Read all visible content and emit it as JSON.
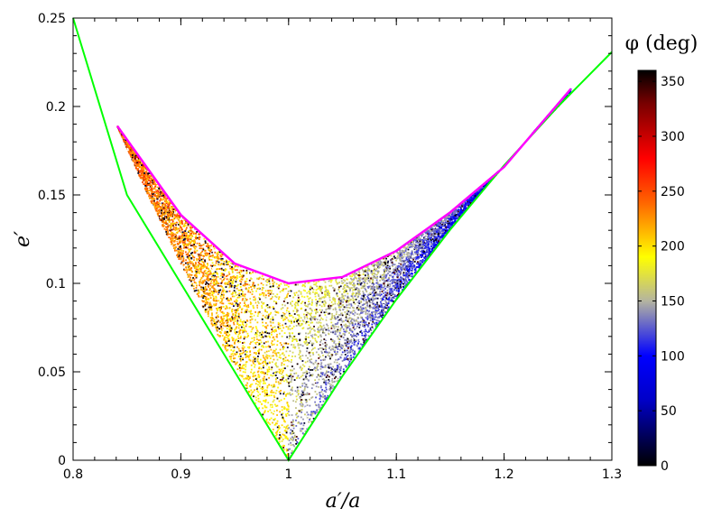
{
  "chart_data": {
    "type": "scatter",
    "title": "",
    "xlabel": "a′/a",
    "ylabel": "e′",
    "xlim": [
      0.8,
      1.3
    ],
    "ylim": [
      0,
      0.25
    ],
    "x_ticks": [
      0.8,
      0.9,
      1.0,
      1.1,
      1.2,
      1.3
    ],
    "x_tick_labels": [
      "0.8",
      "0.9",
      "1",
      "1.1",
      "1.2",
      "1.3"
    ],
    "y_ticks": [
      0,
      0.05,
      0.1,
      0.15,
      0.2,
      0.25
    ],
    "y_tick_labels": [
      "0",
      "0.05",
      "0.1",
      "0.15",
      "0.2",
      "0.25"
    ],
    "grid": false,
    "colorbar": {
      "title": "φ (deg)",
      "range": [
        0,
        360
      ],
      "ticks": [
        0,
        50,
        100,
        150,
        200,
        250,
        300,
        350
      ],
      "tick_labels": [
        "0",
        "50",
        "100",
        "150",
        "200",
        "250",
        "300",
        "350"
      ],
      "stops": [
        {
          "value": 0,
          "color": "#000000"
        },
        {
          "value": 60,
          "color": "#0000c8"
        },
        {
          "value": 100,
          "color": "#0000ff"
        },
        {
          "value": 150,
          "color": "#b4b4a0"
        },
        {
          "value": 190,
          "color": "#ffff00"
        },
        {
          "value": 240,
          "color": "#ff6400"
        },
        {
          "value": 280,
          "color": "#ff0000"
        },
        {
          "value": 330,
          "color": "#780000"
        },
        {
          "value": 360,
          "color": "#000000"
        }
      ]
    },
    "series": [
      {
        "role": "boundary-lower",
        "color": "#00ff00",
        "x": [
          0.8,
          0.85,
          0.9,
          0.95,
          1.0,
          1.05,
          1.1,
          1.15,
          1.2,
          1.25,
          1.3
        ],
        "y": [
          0.25,
          0.15,
          0.1,
          0.05,
          0.0,
          0.0476,
          0.0909,
          0.1304,
          0.1667,
          0.2,
          0.2308
        ]
      },
      {
        "role": "boundary-upper",
        "color": "#ff00ff",
        "x": [
          0.841,
          0.9,
          0.95,
          1.0,
          1.05,
          1.1,
          1.15,
          1.2,
          1.262
        ],
        "y": [
          0.189,
          0.1387,
          0.1112,
          0.1,
          0.1036,
          0.1184,
          0.1402,
          0.1658,
          0.21
        ]
      }
    ],
    "scatter_points": {
      "count": 9000,
      "region_x": [
        0.841,
        1.262
      ],
      "color_by": "φ (deg)"
    }
  }
}
